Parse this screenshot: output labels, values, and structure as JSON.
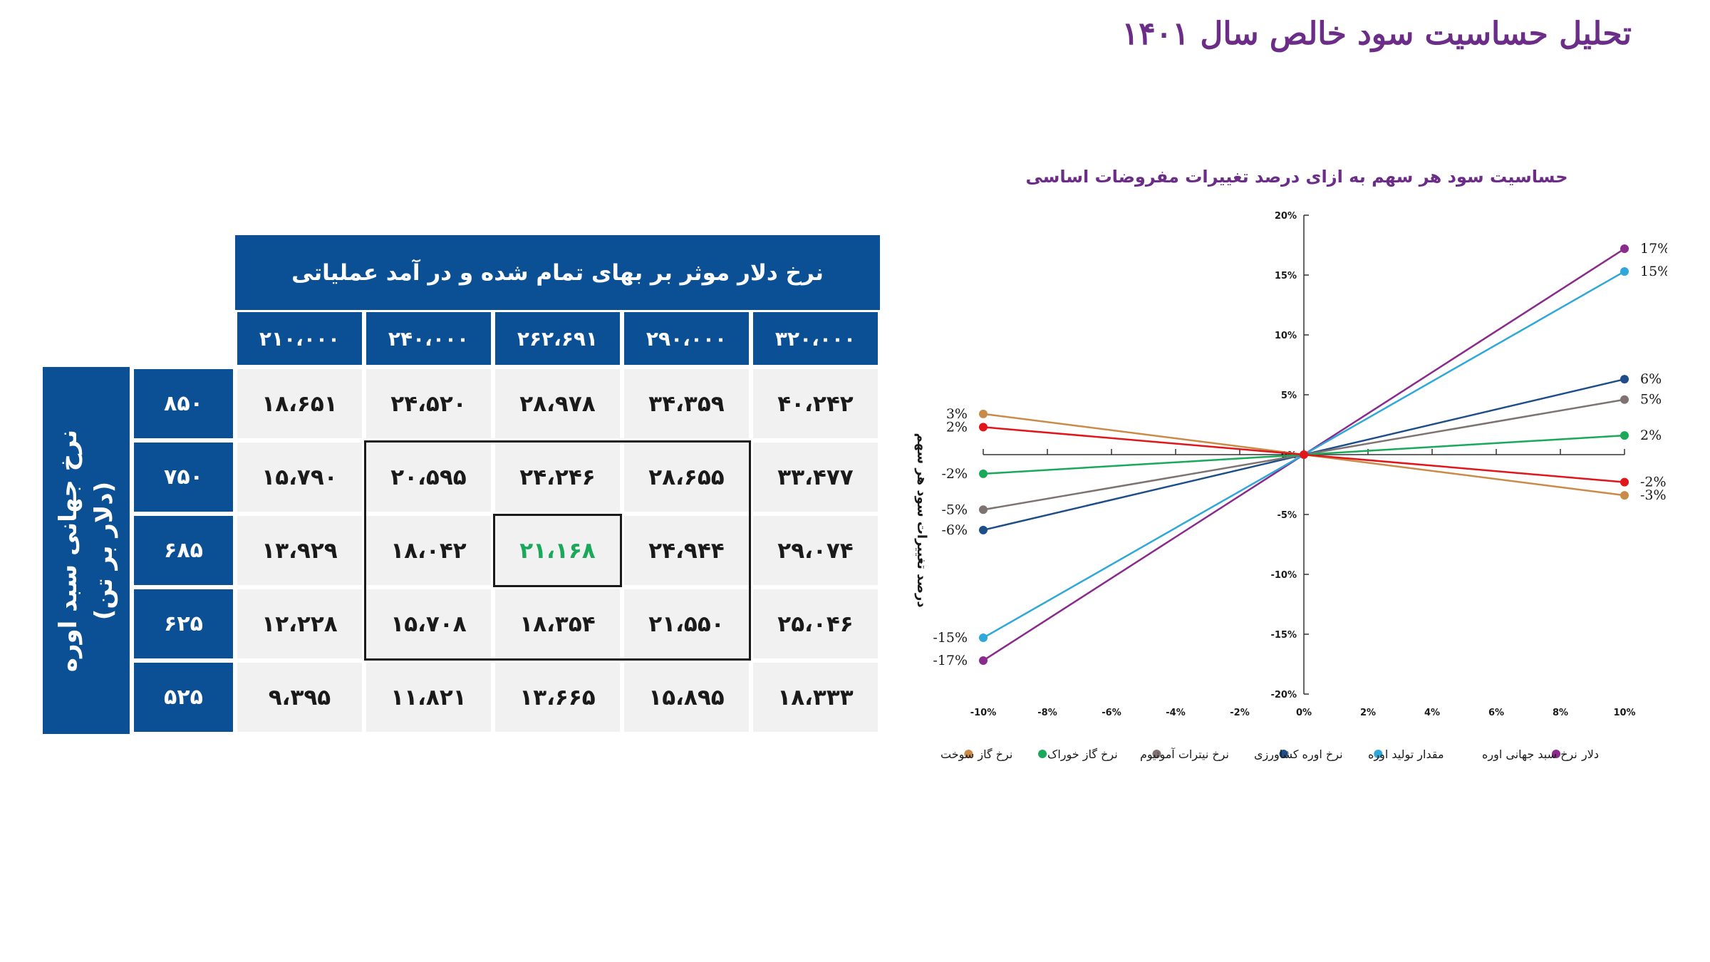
{
  "page": {
    "title": "تحلیل حساسیت سود خالص سال ۱۴۰۱"
  },
  "sensitivity_table": {
    "column_header_title": "نرخ دلار موثر بر بهای تمام شده و در آمد عملیاتی",
    "row_header_title_line1": "نرخ جهانی سبد اوره",
    "row_header_title_line2": "(دلار بر تن)",
    "columns": [
      "۲۱۰،۰۰۰",
      "۲۴۰،۰۰۰",
      "۲۶۲،۶۹۱",
      "۲۹۰،۰۰۰",
      "۳۲۰،۰۰۰"
    ],
    "rows": [
      {
        "label": "۸۵۰",
        "values": [
          "۱۸،۶۵۱",
          "۲۴،۵۲۰",
          "۲۸،۹۷۸",
          "۳۴،۳۵۹",
          "۴۰،۲۴۲"
        ]
      },
      {
        "label": "۷۵۰",
        "values": [
          "۱۵،۷۹۰",
          "۲۰،۵۹۵",
          "۲۴،۲۴۶",
          "۲۸،۶۵۵",
          "۳۳،۴۷۷"
        ]
      },
      {
        "label": "۶۸۵",
        "values": [
          "۱۳،۹۲۹",
          "۱۸،۰۴۲",
          "۲۱،۱۶۸",
          "۲۴،۹۴۴",
          "۲۹،۰۷۴"
        ]
      },
      {
        "label": "۶۲۵",
        "values": [
          "۱۲،۲۲۸",
          "۱۵،۷۰۸",
          "۱۸،۳۵۴",
          "۲۱،۵۵۰",
          "۲۵،۰۴۶"
        ]
      },
      {
        "label": "۵۲۵",
        "values": [
          "۹،۳۹۵",
          "۱۱،۸۲۱",
          "۱۳،۶۶۵",
          "۱۵،۸۹۵",
          "۱۸،۳۳۳"
        ]
      }
    ],
    "base_case": {
      "row": 2,
      "col": 2
    },
    "colors": {
      "header": "#0b4f95",
      "cell": "#f1f1f1",
      "base_value": "#1aa85b"
    }
  },
  "chart_data": {
    "type": "line",
    "title": "حساسیت سود هر سهم به ازای درصد تغییرات مفروضات اساسی",
    "ylabel": "درصد تغییرات سود هر سهم",
    "xlabel": "",
    "x": [
      -10,
      0,
      10
    ],
    "xlim": [
      -10,
      10
    ],
    "ylim": [
      -20,
      20
    ],
    "x_ticks": [
      -10,
      -8,
      -6,
      -4,
      -2,
      0,
      2,
      4,
      6,
      8,
      10
    ],
    "y_ticks": [
      -20,
      -15,
      -10,
      -5,
      0,
      5,
      10,
      15,
      20
    ],
    "x_tick_labels": [
      "-10%",
      "-8%",
      "-6%",
      "-4%",
      "-2%",
      "0%",
      "2%",
      "4%",
      "6%",
      "8%",
      "10%"
    ],
    "y_tick_labels": [
      "-20%",
      "-15%",
      "-10%",
      "-5%",
      "0%",
      "5%",
      "10%",
      "15%",
      "20%"
    ],
    "legend_position": "bottom",
    "series": [
      {
        "name": "دلار",
        "color": "#8a2a8c",
        "values": [
          -17.2,
          0,
          17.2
        ],
        "left_label": "-17%",
        "right_label": "17%"
      },
      {
        "name": "نرخ سبد جهانی اوره",
        "color": "#2ea8d8",
        "values": [
          -15.3,
          0,
          15.3
        ],
        "left_label": "-15%",
        "right_label": "15%"
      },
      {
        "name": "مقدار تولید اوره",
        "color": "#1d4e89",
        "values": [
          -6.3,
          0,
          6.3
        ],
        "left_label": "-6%",
        "right_label": "6%"
      },
      {
        "name": "نرخ اوره کشاورزی",
        "color": "#7f7372",
        "values": [
          -4.6,
          0,
          4.6
        ],
        "left_label": "-5%",
        "right_label": "5%"
      },
      {
        "name": "نرخ نیترات آمونیوم",
        "color": "#1aa85b",
        "values": [
          -1.6,
          0,
          1.6
        ],
        "left_label": "-2%",
        "right_label": "2%"
      },
      {
        "name": "نرخ گاز خوراک",
        "color": "#c98b47",
        "values": [
          3.4,
          0,
          -3.4
        ],
        "left_label": "3%",
        "right_label": "-3%"
      },
      {
        "name": "نرخ گاز سوخت",
        "color": "#e0161b",
        "values": [
          2.3,
          0,
          -2.3
        ],
        "left_label": "2%",
        "right_label": "-2%"
      }
    ]
  }
}
